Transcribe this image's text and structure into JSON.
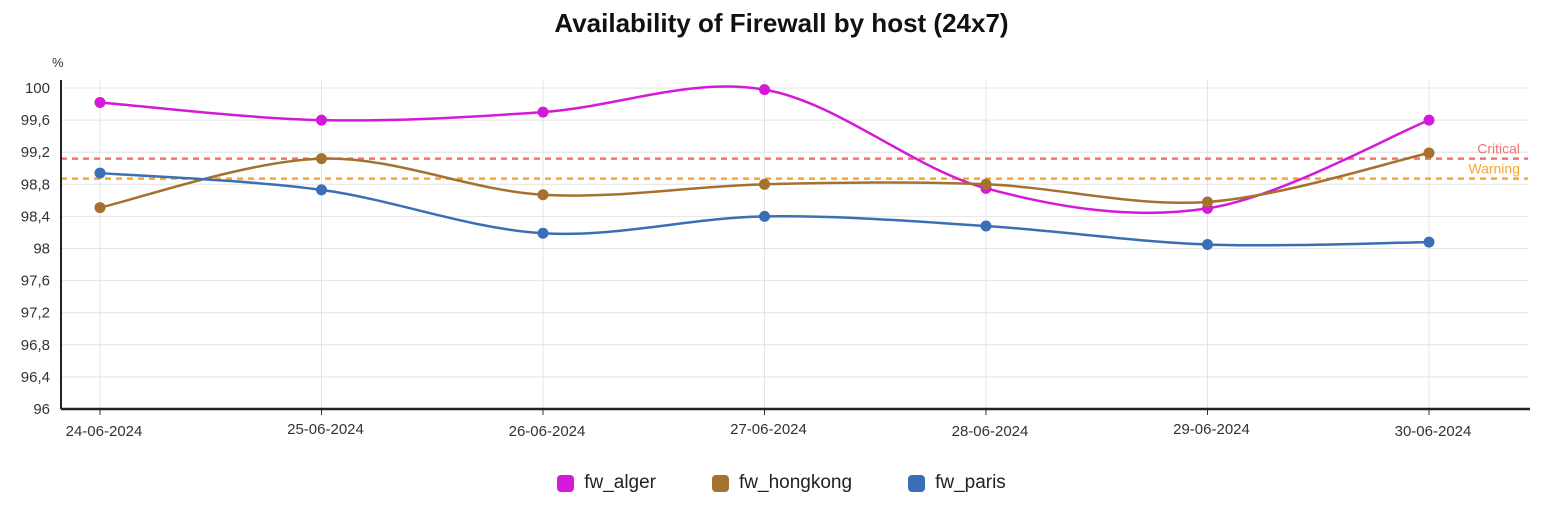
{
  "chart_data": {
    "type": "line",
    "title": "Availability of Firewall by host (24x7)",
    "ylabel": "%",
    "xlabel": "",
    "ylim": [
      96,
      100
    ],
    "yticks": [
      "96",
      "96,4",
      "96,8",
      "97,2",
      "97,6",
      "98",
      "98,4",
      "98,8",
      "99,2",
      "99,6",
      "100"
    ],
    "categories": [
      "24-06-2024",
      "25-06-2024",
      "26-06-2024",
      "27-06-2024",
      "28-06-2024",
      "29-06-2024",
      "30-06-2024"
    ],
    "series": [
      {
        "name": "fw_alger",
        "color": "#d41ad8",
        "values": [
          99.82,
          99.6,
          99.7,
          99.98,
          98.75,
          98.5,
          99.6
        ]
      },
      {
        "name": "fw_hongkong",
        "color": "#a4722e",
        "values": [
          98.51,
          99.12,
          98.67,
          98.8,
          98.8,
          98.58,
          99.19
        ]
      },
      {
        "name": "fw_paris",
        "color": "#3a6fb5",
        "values": [
          98.94,
          98.73,
          98.19,
          98.4,
          98.28,
          98.05,
          98.08
        ]
      }
    ],
    "reference_lines": [
      {
        "label": "Critical",
        "value": 99.12,
        "color": "#f27373"
      },
      {
        "label": "Warning",
        "value": 98.87,
        "color": "#f7a534"
      }
    ],
    "grid": true,
    "legend_position": "bottom"
  }
}
